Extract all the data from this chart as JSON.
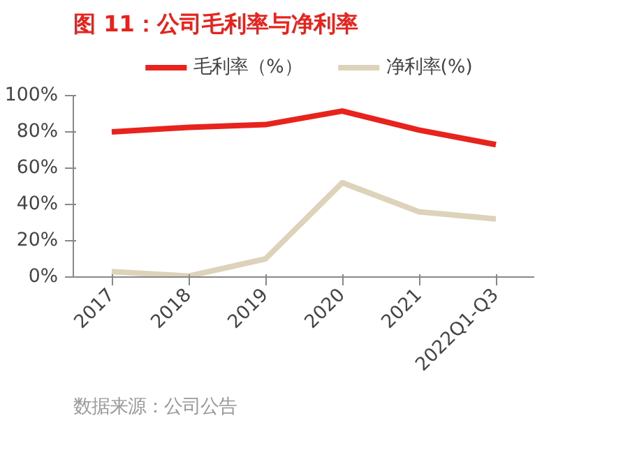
{
  "chart_data": {
    "type": "line",
    "title": "图 11：公司毛利率与净利率",
    "categories": [
      "2017",
      "2018",
      "2019",
      "2020",
      "2021",
      "2022Q1-Q3"
    ],
    "series": [
      {
        "name": "毛利率（%）",
        "color": "#e8231e",
        "values": [
          80,
          82.5,
          84,
          91.5,
          81,
          73
        ]
      },
      {
        "name": "净利率(%)",
        "color": "#ddd3bb",
        "values": [
          3,
          0.5,
          10,
          52,
          36,
          32
        ]
      }
    ],
    "ylim": [
      0,
      100
    ],
    "yticks": [
      {
        "value": 0,
        "label": "0%"
      },
      {
        "value": 20,
        "label": "20%"
      },
      {
        "value": 40,
        "label": "40%"
      },
      {
        "value": 60,
        "label": "60%"
      },
      {
        "value": 80,
        "label": "80%"
      },
      {
        "value": 100,
        "label": "100%"
      }
    ],
    "grid": false,
    "legend": "top",
    "marker": "none",
    "line_style": "solid",
    "annotations": [
      "数据来源：公司公告"
    ]
  }
}
